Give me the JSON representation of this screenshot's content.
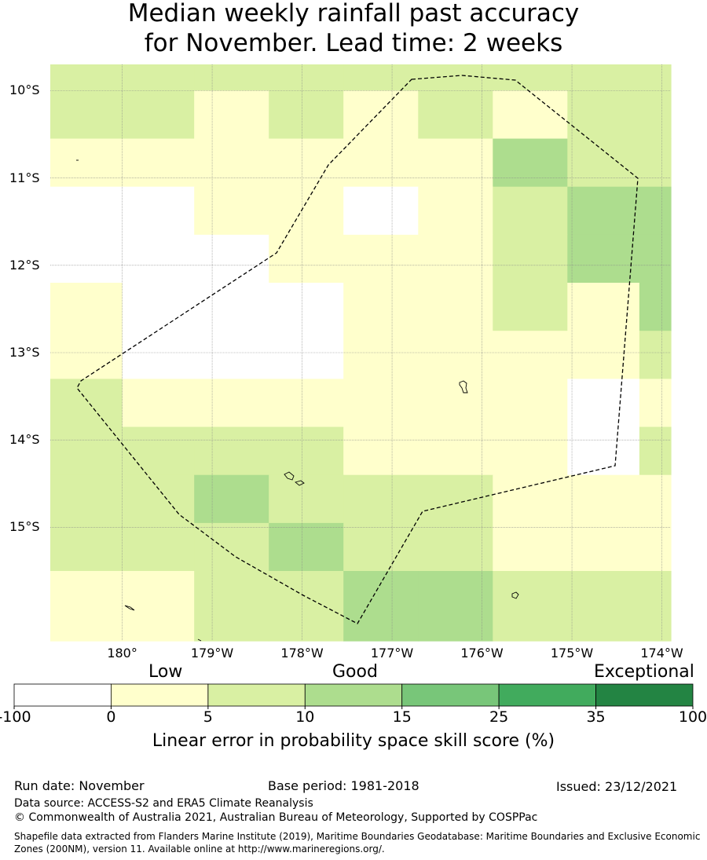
{
  "title_line1": "Median weekly rainfall past accuracy",
  "title_line2": "for November. Lead time: 2 weeks",
  "map": {
    "lat_labels": [
      "10°S",
      "11°S",
      "12°S",
      "13°S",
      "14°S",
      "15°S"
    ],
    "lon_labels": [
      "180°",
      "179°W",
      "178°W",
      "177°W",
      "176°W",
      "175°W",
      "174°W"
    ],
    "grid_lons": [
      180,
      -179,
      -178,
      -177,
      -176,
      -175,
      -174
    ],
    "grid_lats": [
      -10,
      -11,
      -12,
      -13,
      -14,
      -15
    ],
    "extent": {
      "lon_west": 179.2,
      "lon_east": -173.9,
      "lat_north": -9.7,
      "lat_south": -16.3
    },
    "skill_grid": {
      "row_top_lats": [
        -9.7,
        -10.0,
        -10.55,
        -11.1,
        -11.65,
        -12.2,
        -12.75,
        -13.3,
        -13.85,
        -14.4,
        -14.95,
        -15.5
      ],
      "row_bottom_lat": -16.3,
      "col_left_lons": [
        179.2,
        180,
        180.8,
        181.63,
        182.46,
        183.29,
        184.12,
        184.95,
        185.75
      ],
      "col_right_lon": 186.1,
      "levels": [
        [
          2,
          2,
          2,
          2,
          2,
          2,
          2,
          2,
          2
        ],
        [
          2,
          2,
          1,
          2,
          1,
          2,
          1,
          2,
          2
        ],
        [
          1,
          1,
          1,
          1,
          1,
          1,
          3,
          2,
          2
        ],
        [
          0,
          0,
          1,
          1,
          0,
          1,
          2,
          3,
          3
        ],
        [
          0,
          0,
          0,
          1,
          1,
          1,
          2,
          3,
          3
        ],
        [
          1,
          0,
          0,
          0,
          1,
          1,
          2,
          1,
          3
        ],
        [
          1,
          0,
          0,
          0,
          1,
          1,
          1,
          1,
          2
        ],
        [
          2,
          1,
          1,
          1,
          1,
          1,
          1,
          0,
          1
        ],
        [
          2,
          2,
          2,
          2,
          1,
          1,
          1,
          0,
          2
        ],
        [
          2,
          2,
          3,
          2,
          2,
          2,
          1,
          1,
          1
        ],
        [
          2,
          2,
          2,
          3,
          2,
          2,
          1,
          1,
          1
        ],
        [
          1,
          1,
          2,
          2,
          3,
          3,
          2,
          2,
          2
        ]
      ]
    }
  },
  "legend": {
    "low_label": "Low",
    "good_label": "Good",
    "exceptional_label": "Exceptional",
    "boundaries": [
      "-100",
      "0",
      "5",
      "10",
      "15",
      "25",
      "35",
      "100"
    ],
    "colors": [
      "#ffffff",
      "#ffffcc",
      "#d9f0a3",
      "#addd8e",
      "#78c679",
      "#41ab5d",
      "#238443"
    ],
    "title": "Linear error in probability space skill score (%)"
  },
  "footer": {
    "run_date": "Run date: November",
    "base_period": "Base period: 1981-2018",
    "issued": "Issued: 23/12/2021",
    "data_source": "Data source: ACCESS-S2 and ERA5 Climate Reanalysis",
    "copyright": "© Commonwealth of Australia 2021, Australian Bureau of Meteorology, Supported by COSPPac",
    "shapefile_line1": "Shapefile data extracted from Flanders Marine Institute (2019), Maritime Boundaries Geodatabase: Maritime Boundaries and Exclusive Economic",
    "shapefile_line2": "Zones (200NM), version 11. Available online at http://www.marineregions.org/."
  }
}
